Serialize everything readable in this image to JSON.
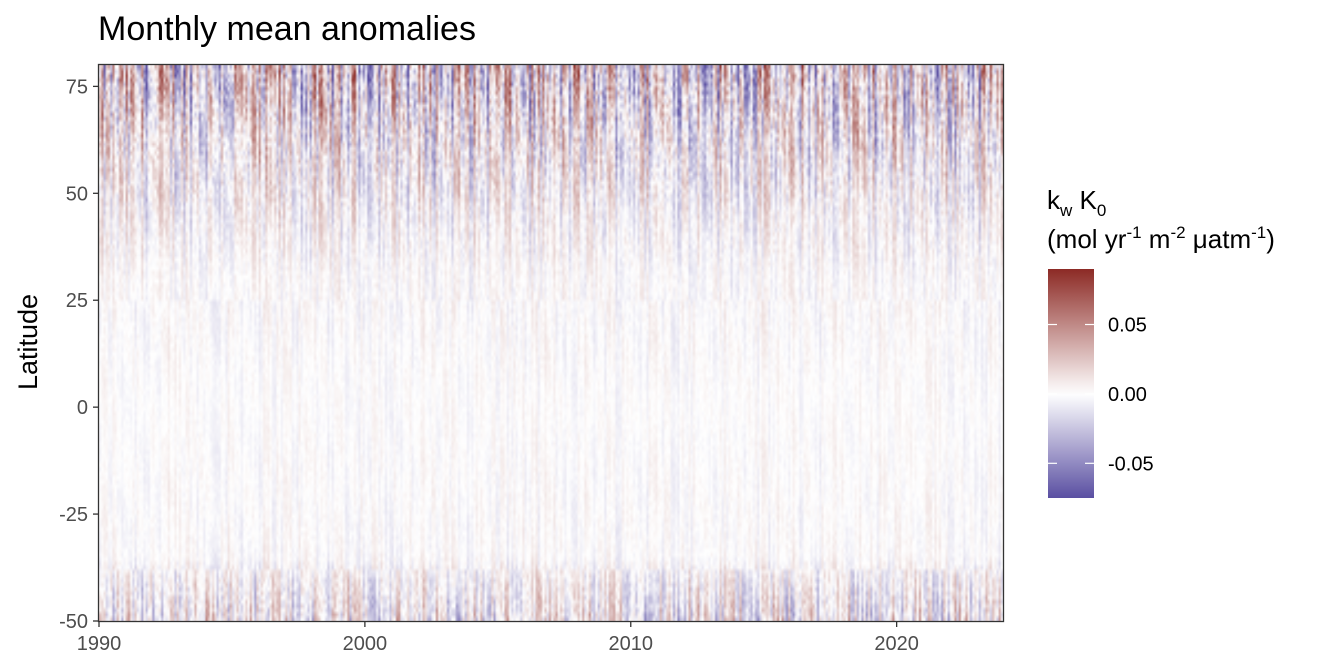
{
  "chart_data": {
    "type": "heatmap",
    "title": "Monthly mean anomalies",
    "xlabel": "",
    "ylabel": "Latitude",
    "xlim": [
      1990,
      2024
    ],
    "ylim": [
      -50,
      80
    ],
    "x_ticks": [
      1990,
      2000,
      2010,
      2020
    ],
    "x_tick_labels": [
      "1990",
      "2000",
      "2010",
      "2020"
    ],
    "y_ticks": [
      -50,
      -25,
      0,
      25,
      50,
      75
    ],
    "y_tick_labels": [
      "-50",
      "-25",
      "0",
      "25",
      "50",
      "75"
    ],
    "grid": false,
    "colorscale": {
      "title_main": "k",
      "title_main_sub": "w",
      "title_main_2": " K",
      "title_main_2_sub": "0",
      "units_parts": [
        "(mol yr",
        "-1",
        " m",
        "-2",
        " μatm",
        "-1",
        ")"
      ],
      "min": -0.075,
      "max": 0.09,
      "ticks": [
        0.05,
        0.0,
        -0.05
      ],
      "tick_labels": [
        "0.05",
        "0.00",
        "-0.05"
      ],
      "low_color": "#5a4fa2",
      "mid_color": "#ffffff",
      "high_color": "#8c2a25",
      "legend_placement": "right"
    },
    "time_step": "monthly",
    "latitude_step": 1,
    "pattern_amplitude_by_latitude": [
      {
        "lat": -50,
        "amplitude": 0.045
      },
      {
        "lat": -40,
        "amplitude": 0.025
      },
      {
        "lat": -35,
        "amplitude": 0.01
      },
      {
        "lat": 0,
        "amplitude": 0.007
      },
      {
        "lat": 30,
        "amplitude": 0.012
      },
      {
        "lat": 45,
        "amplitude": 0.025
      },
      {
        "lat": 60,
        "amplitude": 0.045
      },
      {
        "lat": 80,
        "amplitude": 0.075
      }
    ]
  }
}
